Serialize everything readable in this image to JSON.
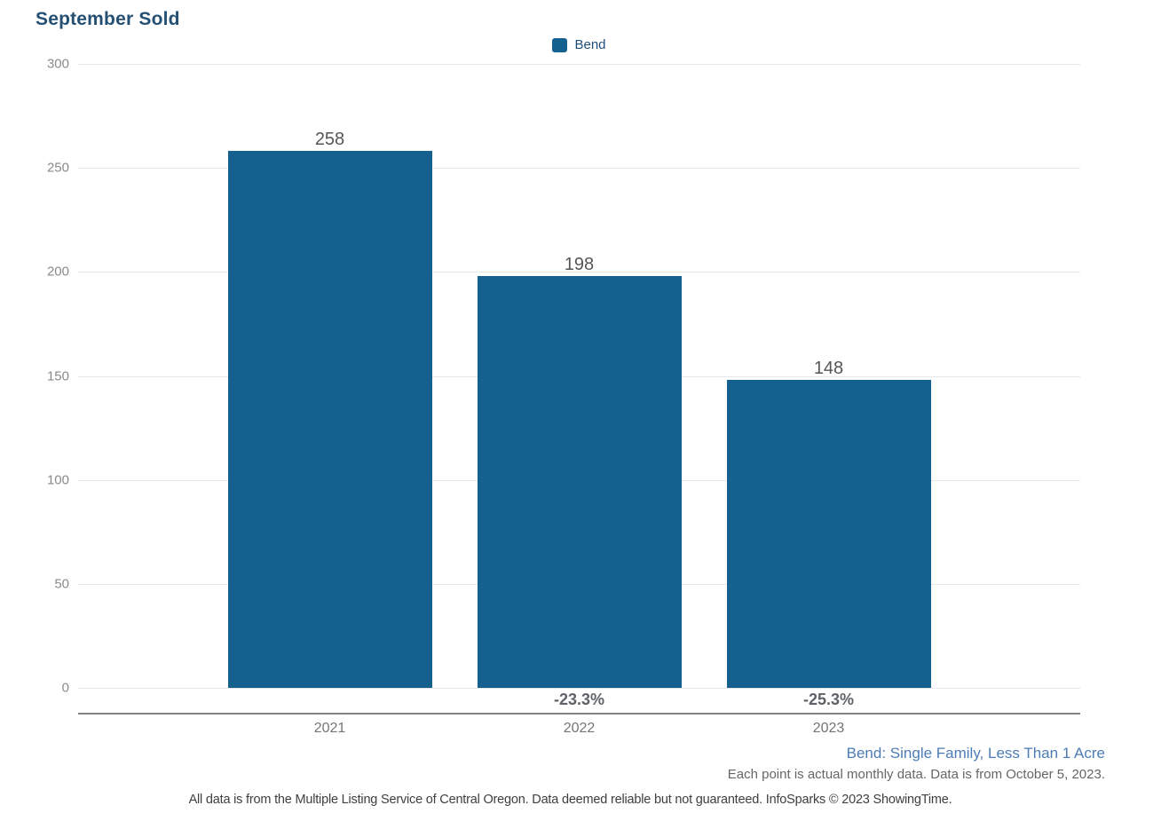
{
  "chart_data": {
    "type": "bar",
    "title": "September Sold",
    "categories": [
      "2021",
      "2022",
      "2023"
    ],
    "series": [
      {
        "name": "Bend",
        "values": [
          258,
          198,
          148
        ],
        "color": "#14618f"
      }
    ],
    "value_labels": [
      "258",
      "198",
      "148"
    ],
    "pct_change_labels": [
      "",
      "-23.3%",
      "-25.3%"
    ],
    "yticks": [
      0,
      50,
      100,
      150,
      200,
      250,
      300
    ],
    "ylim": [
      0,
      300
    ],
    "xlabel": "",
    "ylabel": "",
    "grid": true,
    "legend_position": "top-center"
  },
  "legend": {
    "items": [
      {
        "label": "Bend",
        "color": "#14618f"
      }
    ]
  },
  "footnotes": {
    "series_note": "Bend: Single Family, Less Than 1 Acre",
    "data_note": "Each point is actual monthly data. Data is from October 5, 2023.",
    "disclaimer": "All data is from the Multiple Listing Service of Central Oregon. Data deemed reliable but not guaranteed. InfoSparks © 2023 ShowingTime."
  },
  "colors": {
    "bar": "#14618f",
    "title_text": "#255073",
    "legend_text": "#1f4e79",
    "series_note_text": "#4d7cb5",
    "gridline": "#e7e7e7",
    "axis_line": "#828282"
  }
}
